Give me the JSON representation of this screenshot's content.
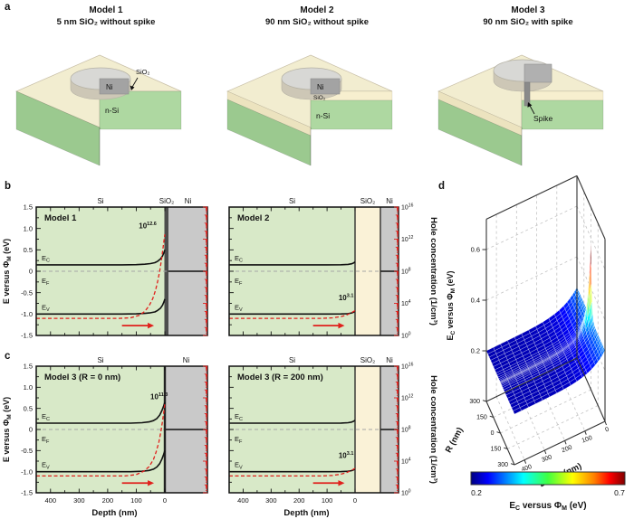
{
  "figure": {
    "panel_labels": {
      "a": "a",
      "b": "b",
      "c": "c",
      "d": "d"
    }
  },
  "colors": {
    "si_fill": "#d8e9c8",
    "sio2_fill": "#faf2d7",
    "ni_fill": "#c9c9c9",
    "thin_oxide": "#4d4d4d",
    "red": "#e0201c",
    "ef_dash": "#a6a6a6",
    "schematic_top": "#f2edd0",
    "schematic_band": "#ece3bf",
    "face_light": "#aed8a1",
    "face_dark": "#9bc98f",
    "cyl_top": "#d8d8d5",
    "cyl_side": "#cdc7b6",
    "ni_box": "#a3a3a3",
    "spike_gray": "#8a8a8a"
  },
  "panel_a": {
    "models": [
      {
        "title_line1": "Model 1",
        "title_line2": "5 nm SiO₂ without spike",
        "labels": {
          "ni": "Ni",
          "sio2": "SiO₂",
          "nsi": "n-Si"
        }
      },
      {
        "title_line1": "Model 2",
        "title_line2": "90 nm SiO₂ without spike",
        "labels": {
          "ni": "Ni",
          "sio2": "SiO₂",
          "nsi": "n-Si"
        }
      },
      {
        "title_line1": "Model 3",
        "title_line2": "90 nm SiO₂ with spike",
        "labels": {
          "spike": "Spike"
        }
      }
    ]
  },
  "band_plots": {
    "b1": {
      "name_label": "Model 1",
      "top_labels": [
        "Si",
        "SiO₂",
        "Ni"
      ],
      "yaxis": {
        "title_pre": "E versus Φ",
        "title_sub": "M",
        "title_post": " (eV)",
        "ticks": [
          "1.5",
          "1.0",
          "0.5",
          "0",
          "-0.5",
          "-1.0",
          "-1.5"
        ]
      },
      "xaxis": {
        "ticks": [
          "400",
          "300",
          "200",
          "100",
          "0"
        ],
        "title": "Depth (nm)"
      },
      "right_axis": {
        "ticks_exp": [
          "16",
          "12",
          "8",
          "4",
          "0"
        ],
        "title": "Hole concentration (1/cm³)"
      },
      "band_labels": {
        "ec": [
          "E",
          "C"
        ],
        "ef": [
          "E",
          "F"
        ],
        "ev": [
          "E",
          "V"
        ]
      },
      "annotation": {
        "base": "10",
        "exp": "12.6",
        "d": 60,
        "ev": 1.0
      },
      "curves": {
        "ec": [
          [
            450,
            0.15
          ],
          [
            150,
            0.15
          ],
          [
            100,
            0.155
          ],
          [
            70,
            0.165
          ],
          [
            50,
            0.18
          ],
          [
            35,
            0.2
          ],
          [
            25,
            0.235
          ],
          [
            15,
            0.29
          ],
          [
            8,
            0.36
          ],
          [
            3,
            0.44
          ],
          [
            0,
            0.5
          ]
        ],
        "ev": [
          [
            450,
            -1.0
          ],
          [
            150,
            -1.0
          ],
          [
            100,
            -0.995
          ],
          [
            70,
            -0.985
          ],
          [
            50,
            -0.97
          ],
          [
            35,
            -0.95
          ],
          [
            25,
            -0.915
          ],
          [
            15,
            -0.86
          ],
          [
            8,
            -0.79
          ],
          [
            3,
            -0.71
          ],
          [
            0,
            -0.65
          ]
        ],
        "hole_log": [
          [
            450,
            2.13
          ],
          [
            160,
            2.13
          ],
          [
            120,
            2.2
          ],
          [
            90,
            2.5
          ],
          [
            70,
            3.0
          ],
          [
            55,
            3.7
          ],
          [
            42,
            4.6
          ],
          [
            32,
            5.7
          ],
          [
            24,
            6.9
          ],
          [
            17,
            8.2
          ],
          [
            11,
            9.6
          ],
          [
            6,
            11.0
          ],
          [
            2,
            12.1
          ],
          [
            0,
            12.6
          ]
        ]
      }
    },
    "b2": {
      "name_label": "Model 2",
      "top_labels": [
        "Si",
        "SiO₂",
        "Ni"
      ],
      "yaxis": {
        "title_pre": "E versus Φ",
        "title_sub": "M",
        "title_post": " (eV)",
        "ticks": [
          "1.5",
          "1.0",
          "0.5",
          "0",
          "-0.5",
          "-1.0",
          "-1.5"
        ]
      },
      "xaxis": {
        "ticks": [
          "400",
          "300",
          "200",
          "100",
          "0"
        ],
        "title": "Depth (nm)"
      },
      "right_axis": {
        "ticks_exp": [
          "16",
          "12",
          "8",
          "4",
          "0"
        ],
        "title": "Hole concentration (1/cm³)"
      },
      "band_labels": {
        "ec": [
          "E",
          "C"
        ],
        "ef": [
          "E",
          "F"
        ],
        "ev": [
          "E",
          "V"
        ]
      },
      "annotation": {
        "base": "10",
        "exp": "3.1",
        "d": 32,
        "ev": -0.68
      },
      "curves": {
        "ec": [
          [
            450,
            0.15
          ],
          [
            100,
            0.15
          ],
          [
            50,
            0.152
          ],
          [
            25,
            0.16
          ],
          [
            12,
            0.175
          ],
          [
            5,
            0.195
          ],
          [
            0,
            0.22
          ]
        ],
        "ev": [
          [
            450,
            -1.0
          ],
          [
            100,
            -1.0
          ],
          [
            50,
            -0.998
          ],
          [
            25,
            -0.99
          ],
          [
            12,
            -0.975
          ],
          [
            5,
            -0.955
          ],
          [
            0,
            -0.93
          ]
        ],
        "hole_log": [
          [
            450,
            2.13
          ],
          [
            120,
            2.13
          ],
          [
            80,
            2.2
          ],
          [
            50,
            2.35
          ],
          [
            30,
            2.55
          ],
          [
            15,
            2.8
          ],
          [
            5,
            3.0
          ],
          [
            0,
            3.1
          ]
        ]
      }
    },
    "c1": {
      "name_label": "Model 3 (R = 0 nm)",
      "top_labels": [
        "Si",
        "Ni"
      ],
      "yaxis": {
        "title_pre": "E versus Φ",
        "title_sub": "M",
        "title_post": " (eV)",
        "ticks": [
          "1.5",
          "1.0",
          "0.5",
          "0",
          "-0.5",
          "-1.0",
          "-1.5"
        ]
      },
      "xaxis": {
        "ticks": [
          "400",
          "300",
          "200",
          "100",
          "0"
        ],
        "title": "Depth (nm)"
      },
      "right_axis": {
        "ticks_exp": [
          "16",
          "12",
          "8",
          "4",
          "0"
        ],
        "title": "Hole concentration (1/cm³)"
      },
      "band_labels": {
        "ec": [
          "E",
          "C"
        ],
        "ef": [
          "E",
          "F"
        ],
        "ev": [
          "E",
          "V"
        ]
      },
      "annotation": {
        "base": "10",
        "exp": "11.3",
        "d": 20,
        "ev": 0.72
      },
      "curves": {
        "ec": [
          [
            450,
            0.15
          ],
          [
            120,
            0.15
          ],
          [
            80,
            0.16
          ],
          [
            55,
            0.18
          ],
          [
            40,
            0.21
          ],
          [
            28,
            0.26
          ],
          [
            18,
            0.34
          ],
          [
            10,
            0.45
          ],
          [
            4,
            0.56
          ],
          [
            0,
            0.65
          ]
        ],
        "ev": [
          [
            450,
            -1.0
          ],
          [
            120,
            -1.0
          ],
          [
            80,
            -0.99
          ],
          [
            55,
            -0.97
          ],
          [
            40,
            -0.94
          ],
          [
            28,
            -0.89
          ],
          [
            18,
            -0.81
          ],
          [
            10,
            -0.7
          ],
          [
            4,
            -0.59
          ],
          [
            0,
            -0.5
          ]
        ],
        "hole_log": [
          [
            450,
            2.13
          ],
          [
            140,
            2.13
          ],
          [
            100,
            2.3
          ],
          [
            75,
            2.7
          ],
          [
            55,
            3.3
          ],
          [
            40,
            4.2
          ],
          [
            30,
            5.2
          ],
          [
            21,
            6.4
          ],
          [
            14,
            7.7
          ],
          [
            8,
            9.1
          ],
          [
            3,
            10.4
          ],
          [
            0,
            11.3
          ]
        ]
      }
    },
    "c2": {
      "name_label": "Model 3 (R = 200 nm)",
      "top_labels": [
        "Si",
        "SiO₂",
        "Ni"
      ],
      "yaxis": {
        "title_pre": "E versus Φ",
        "title_sub": "M",
        "title_post": " (eV)",
        "ticks": [
          "1.5",
          "1.0",
          "0.5",
          "0",
          "-0.5",
          "-1.0",
          "-1.5"
        ]
      },
      "xaxis": {
        "ticks": [
          "400",
          "300",
          "200",
          "100",
          "0"
        ],
        "title": "Depth (nm)"
      },
      "right_axis": {
        "ticks_exp": [
          "16",
          "12",
          "8",
          "4",
          "0"
        ],
        "title": "Hole concentration (1/cm³)"
      },
      "band_labels": {
        "ec": [
          "E",
          "C"
        ],
        "ef": [
          "E",
          "F"
        ],
        "ev": [
          "E",
          "V"
        ]
      },
      "annotation": {
        "base": "10",
        "exp": "3.1",
        "d": 32,
        "ev": -0.68
      },
      "curves": {
        "ec": [
          [
            450,
            0.15
          ],
          [
            100,
            0.15
          ],
          [
            50,
            0.152
          ],
          [
            25,
            0.16
          ],
          [
            12,
            0.175
          ],
          [
            5,
            0.195
          ],
          [
            0,
            0.22
          ]
        ],
        "ev": [
          [
            450,
            -1.0
          ],
          [
            100,
            -1.0
          ],
          [
            50,
            -0.998
          ],
          [
            25,
            -0.99
          ],
          [
            12,
            -0.975
          ],
          [
            5,
            -0.955
          ],
          [
            0,
            -0.93
          ]
        ],
        "hole_log": [
          [
            450,
            2.13
          ],
          [
            120,
            2.13
          ],
          [
            80,
            2.2
          ],
          [
            50,
            2.35
          ],
          [
            30,
            2.55
          ],
          [
            15,
            2.8
          ],
          [
            5,
            3.0
          ],
          [
            0,
            3.1
          ]
        ]
      }
    }
  },
  "panel_d": {
    "zaxis": {
      "ticks": [
        "0.6",
        "0.4",
        "0.2"
      ],
      "tick_values": [
        0.6,
        0.4,
        0.2
      ],
      "title_parts": [
        "E",
        "C",
        " versus Φ",
        "M",
        " (eV)"
      ]
    },
    "r_axis": {
      "title": "R (nm)",
      "ticks": [
        "300",
        "150",
        "0",
        "150",
        "300"
      ],
      "tick_values": [
        300,
        150,
        0,
        -150,
        -300
      ]
    },
    "depth_axis": {
      "title": "Depth (nm)",
      "ticks": [
        "400",
        "300",
        "200",
        "100",
        "0"
      ],
      "tick_values": [
        400,
        300,
        200,
        100,
        0
      ]
    },
    "colorbar": {
      "min": "0.2",
      "max": "0.7",
      "title_parts": [
        "E",
        "C",
        " versus Φ",
        "M",
        " (eV)"
      ]
    },
    "surface": {
      "base": 0.2,
      "edge_amp": 0.08,
      "edge_tau": 70,
      "spike_amp": 0.3,
      "spike_tau": 16,
      "peak": 0.58
    }
  },
  "chart_data": [
    {
      "type": "line",
      "title": "Model 1",
      "xlabel": "Depth (nm)",
      "x_range": [
        450,
        0
      ],
      "left_axis": {
        "label": "E versus ΦM (eV)",
        "range": [
          -1.5,
          1.5
        ]
      },
      "right_axis": {
        "label": "Hole concentration (1/cm³)",
        "log10_range": [
          0,
          16
        ]
      },
      "regions": [
        "Si",
        "SiO₂ (5 nm)",
        "Ni"
      ],
      "series": [
        "EC",
        "EF",
        "EV",
        "hole concentration"
      ],
      "peak_hole_conc": "10^12.6"
    },
    {
      "type": "line",
      "title": "Model 2",
      "xlabel": "Depth (nm)",
      "x_range": [
        450,
        0
      ],
      "regions": [
        "Si",
        "SiO₂ (90 nm)",
        "Ni"
      ],
      "peak_hole_conc": "10^3.1"
    },
    {
      "type": "line",
      "title": "Model 3 (R = 0 nm)",
      "xlabel": "Depth (nm)",
      "x_range": [
        450,
        0
      ],
      "regions": [
        "Si",
        "Ni"
      ],
      "peak_hole_conc": "10^11.3"
    },
    {
      "type": "line",
      "title": "Model 3 (R = 200 nm)",
      "xlabel": "Depth (nm)",
      "x_range": [
        450,
        0
      ],
      "regions": [
        "Si",
        "SiO₂ (90 nm)",
        "Ni"
      ],
      "peak_hole_conc": "10^3.1"
    },
    {
      "type": "surface",
      "zlabel": "EC versus ΦM (eV)",
      "x": "Depth (nm) 450→0",
      "y": "R (nm) -300→300",
      "color_range": [
        0.2,
        0.7
      ],
      "base_level": 0.2,
      "peak": {
        "depth": 0,
        "R": 0
      }
    }
  ]
}
